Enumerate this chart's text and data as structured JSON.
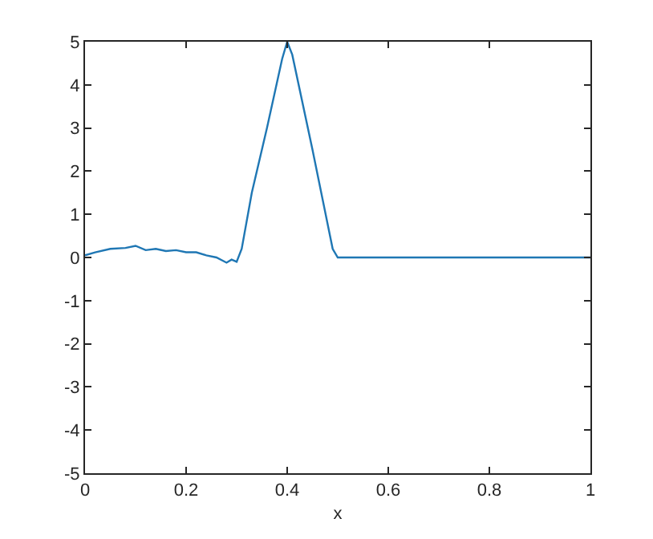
{
  "chart_data": {
    "type": "line",
    "xlabel": "x",
    "x": [
      0,
      0.02,
      0.05,
      0.08,
      0.1,
      0.12,
      0.14,
      0.16,
      0.18,
      0.2,
      0.22,
      0.24,
      0.26,
      0.28,
      0.29,
      0.3,
      0.31,
      0.33,
      0.36,
      0.39,
      0.4,
      0.41,
      0.45,
      0.49,
      0.5,
      0.6,
      0.8,
      1
    ],
    "series": [
      {
        "color": "#1f77b4",
        "values": [
          0.05,
          0.12,
          0.2,
          0.22,
          0.27,
          0.17,
          0.2,
          0.15,
          0.17,
          0.12,
          0.12,
          0.05,
          0.0,
          -0.12,
          -0.05,
          -0.1,
          0.2,
          1.5,
          3.0,
          4.6,
          5.0,
          4.7,
          2.5,
          0.2,
          0,
          0,
          0,
          0
        ]
      }
    ],
    "xlim": [
      0,
      1
    ],
    "xticks": [
      0,
      0.2,
      0.4,
      0.6,
      0.8,
      1
    ],
    "ylim": [
      -5,
      5
    ],
    "yticks": [
      -5,
      -4,
      -3,
      -2,
      -1,
      0,
      1,
      2,
      3,
      4,
      5
    ],
    "marker": "none",
    "line_style": "solid"
  }
}
